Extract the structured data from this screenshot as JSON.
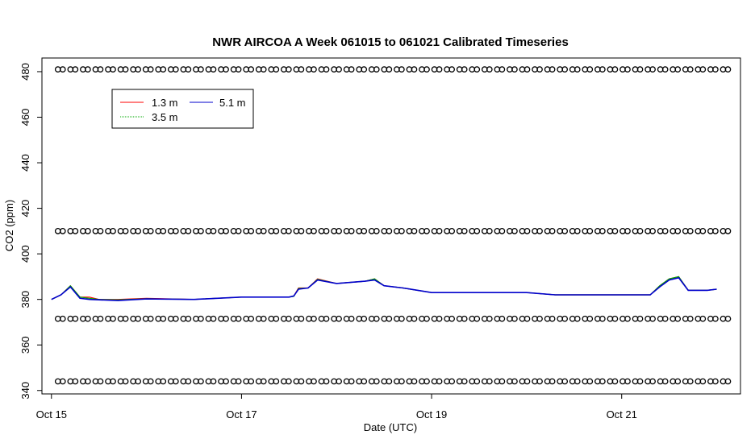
{
  "chart_data": {
    "type": "line",
    "title": "NWR AIRCOA A  Week 061015 to 061021  Calibrated Timeseries",
    "xlabel": "Date (UTC)",
    "ylabel": "CO2 (ppm)",
    "x_unit": "days",
    "xlim": [
      "2006-10-14T21:36",
      "2006-10-22T06:00"
    ],
    "ylim": [
      338.5,
      486
    ],
    "x_ticks": [
      {
        "label": "Oct 15",
        "x": "2006-10-15T00:00"
      },
      {
        "label": "Oct 17",
        "x": "2006-10-17T00:00"
      },
      {
        "label": "Oct 19",
        "x": "2006-10-19T00:00"
      },
      {
        "label": "Oct 21",
        "x": "2006-10-21T00:00"
      }
    ],
    "y_ticks": [
      340,
      360,
      380,
      400,
      420,
      440,
      460,
      480
    ],
    "legend": {
      "position": "top-left",
      "entries": [
        {
          "name": "1.3 m",
          "color": "#ff0000"
        },
        {
          "name": "3.5 m",
          "color": "#00aa00"
        },
        {
          "name": "5.1 m",
          "color": "#0000cc"
        }
      ]
    },
    "series": [
      {
        "name": "1.3 m",
        "color": "#ff0000",
        "x": [
          "2006-10-15T00:00",
          "2006-10-15T02:24",
          "2006-10-15T04:48",
          "2006-10-15T07:12",
          "2006-10-15T09:36",
          "2006-10-15T12:00",
          "2006-10-15T16:48",
          "2006-10-16T00:00",
          "2006-10-16T12:00",
          "2006-10-17T00:00",
          "2006-10-17T12:00",
          "2006-10-17T13:12",
          "2006-10-17T14:24",
          "2006-10-17T16:48",
          "2006-10-17T19:12",
          "2006-10-18T00:00",
          "2006-10-18T07:12",
          "2006-10-18T09:36",
          "2006-10-18T12:00",
          "2006-10-18T16:48",
          "2006-10-19T00:00",
          "2006-10-19T12:00",
          "2006-10-20T00:00",
          "2006-10-20T07:12",
          "2006-10-20T12:00",
          "2006-10-21T00:00",
          "2006-10-21T07:12",
          "2006-10-21T09:36",
          "2006-10-21T12:00",
          "2006-10-21T14:24",
          "2006-10-21T16:48",
          "2006-10-21T21:36",
          "2006-10-21T23:59"
        ],
        "values": [
          380,
          382,
          386,
          381,
          381,
          380,
          380,
          380.5,
          380,
          381,
          381,
          381.5,
          385,
          385,
          389,
          387,
          388,
          389,
          386,
          385,
          383,
          383,
          383,
          382,
          382,
          382,
          382,
          386,
          389,
          390,
          384,
          384,
          384.5
        ]
      },
      {
        "name": "3.5 m",
        "color": "#00aa00",
        "x": [
          "2006-10-15T00:00",
          "2006-10-15T02:24",
          "2006-10-15T04:48",
          "2006-10-15T07:12",
          "2006-10-15T09:36",
          "2006-10-15T12:00",
          "2006-10-15T16:48",
          "2006-10-16T00:00",
          "2006-10-16T12:00",
          "2006-10-17T00:00",
          "2006-10-17T12:00",
          "2006-10-17T13:12",
          "2006-10-17T14:24",
          "2006-10-17T16:48",
          "2006-10-17T19:12",
          "2006-10-18T00:00",
          "2006-10-18T07:12",
          "2006-10-18T09:36",
          "2006-10-18T12:00",
          "2006-10-18T16:48",
          "2006-10-19T00:00",
          "2006-10-19T12:00",
          "2006-10-20T00:00",
          "2006-10-20T07:12",
          "2006-10-20T12:00",
          "2006-10-21T00:00",
          "2006-10-21T07:12",
          "2006-10-21T09:36",
          "2006-10-21T12:00",
          "2006-10-21T14:24",
          "2006-10-21T16:48",
          "2006-10-21T21:36",
          "2006-10-21T23:59"
        ],
        "values": [
          380,
          382,
          386,
          381,
          380.5,
          380,
          379.8,
          380.3,
          380,
          381,
          381,
          381.3,
          384.8,
          385,
          388.8,
          387,
          388,
          389,
          386,
          385,
          383,
          383,
          383,
          382,
          382,
          382,
          382,
          386,
          389,
          390,
          384,
          384,
          384.5
        ]
      },
      {
        "name": "5.1 m",
        "color": "#0000cc",
        "x": [
          "2006-10-15T00:00",
          "2006-10-15T02:24",
          "2006-10-15T04:48",
          "2006-10-15T07:12",
          "2006-10-15T09:36",
          "2006-10-15T12:00",
          "2006-10-15T16:48",
          "2006-10-16T00:00",
          "2006-10-16T12:00",
          "2006-10-17T00:00",
          "2006-10-17T12:00",
          "2006-10-17T13:12",
          "2006-10-17T14:24",
          "2006-10-17T16:48",
          "2006-10-17T19:12",
          "2006-10-18T00:00",
          "2006-10-18T07:12",
          "2006-10-18T09:36",
          "2006-10-18T12:00",
          "2006-10-18T16:48",
          "2006-10-19T00:00",
          "2006-10-19T12:00",
          "2006-10-20T00:00",
          "2006-10-20T07:12",
          "2006-10-20T12:00",
          "2006-10-21T00:00",
          "2006-10-21T07:12",
          "2006-10-21T09:36",
          "2006-10-21T12:00",
          "2006-10-21T14:24",
          "2006-10-21T16:48",
          "2006-10-21T21:36",
          "2006-10-21T23:59"
        ],
        "values": [
          380,
          382,
          385.5,
          380.5,
          380,
          379.8,
          379.5,
          380.2,
          380,
          381,
          381,
          381.5,
          384.5,
          385,
          388.5,
          387,
          388,
          388.5,
          386,
          385,
          383,
          383,
          383,
          382,
          382,
          382,
          382,
          385.5,
          388.5,
          389.5,
          384,
          384,
          384.5
        ]
      }
    ],
    "reference_rows": [
      {
        "label": "",
        "y": 481
      },
      {
        "label": "",
        "y": 410
      },
      {
        "label": "",
        "y": 371.5
      },
      {
        "label": "",
        "y": 344
      }
    ],
    "reference_marker": "circle",
    "reference_x_range": [
      "2006-10-15T00:00",
      "2006-10-21T23:59"
    ],
    "reference_count": 54
  }
}
